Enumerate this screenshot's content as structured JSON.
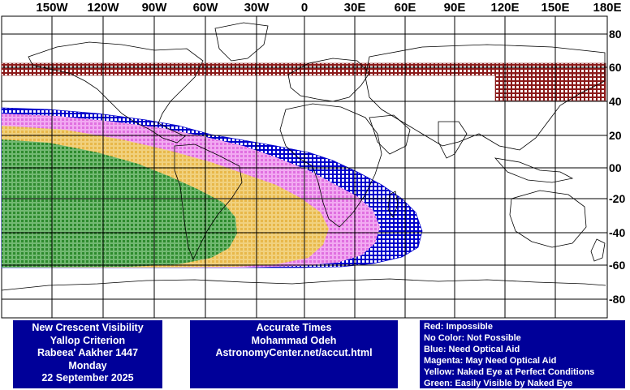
{
  "map": {
    "lon_labels": [
      "150W",
      "120W",
      "90W",
      "60W",
      "30W",
      "0",
      "30E",
      "60E",
      "90E",
      "120E",
      "150E",
      "180E"
    ],
    "lat_labels": [
      "80",
      "60",
      "40",
      "20",
      "00",
      "-20",
      "-40",
      "-60",
      "-80"
    ],
    "colors": {
      "red": "#8b1a1a",
      "blue": "#0000cc",
      "magenta": "#e070e0",
      "yellow": "#e8b84a",
      "green": "#2e8b2e",
      "grid": "#000000",
      "panel": "#000099"
    }
  },
  "footer": {
    "left": {
      "line1": "New Crescent Visibility",
      "line2": "Yallop Criterion",
      "line3": "Rabeea' Aakher 1447",
      "line4": "Monday",
      "line5": "22 September 2025"
    },
    "middle": {
      "line1": "Accurate Times",
      "line2": "Mohammad Odeh",
      "line3": "AstronomyCenter.net/accut.html"
    },
    "legend": {
      "red": "Red: Impossible",
      "none": "No Color: Not Possible",
      "blue": "Blue: Need Optical Aid",
      "magenta": "Magenta: May Need Optical Aid",
      "yellow": "Yellow: Naked Eye at Perfect Conditions",
      "green": "Green: Easily Visible by Naked Eye"
    }
  }
}
